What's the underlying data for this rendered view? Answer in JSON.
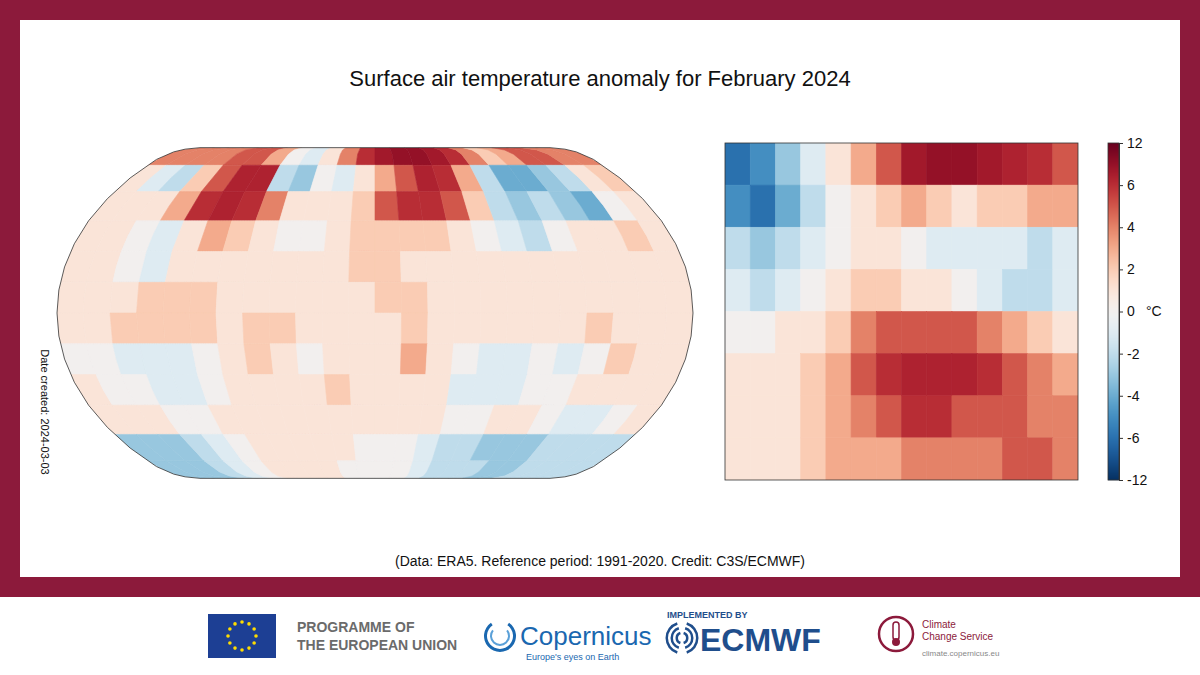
{
  "chart_data": [
    {
      "type": "heatmap",
      "title": "Surface air temperature anomaly for February 2024",
      "lon": [
        -172.5,
        -157.5,
        -142.5,
        -127.5,
        -112.5,
        -97.5,
        -82.5,
        -67.5,
        -52.5,
        -37.5,
        -22.5,
        -7.5,
        7.5,
        22.5,
        37.5,
        52.5,
        67.5,
        82.5,
        97.5,
        112.5,
        127.5,
        142.5,
        157.5,
        172.5
      ],
      "lat": [
        82.5,
        67.5,
        52.5,
        37.5,
        22.5,
        7.5,
        -7.5,
        -22.5,
        -37.5,
        -52.5,
        -67.5,
        -82.5
      ],
      "values": [
        [
          4,
          4,
          4,
          4,
          5,
          5,
          3,
          0,
          -1,
          1,
          4,
          6,
          8,
          9,
          9,
          8,
          6,
          4,
          2,
          3,
          5,
          5,
          4,
          4
        ],
        [
          1,
          -1,
          -2,
          2,
          5,
          7,
          7,
          -2,
          -3,
          0,
          -1,
          1,
          3,
          5,
          7,
          6,
          3,
          -2,
          -4,
          -4,
          -3,
          -2,
          1,
          2
        ],
        [
          1,
          1,
          1,
          3,
          6,
          7,
          6,
          4,
          1,
          1,
          1,
          2,
          5,
          6,
          6,
          5,
          2,
          -2,
          -3,
          -2,
          -3,
          -4,
          0,
          1
        ],
        [
          1,
          1,
          0,
          -1,
          1,
          3,
          2,
          1,
          0,
          0,
          1,
          2,
          2,
          2,
          2,
          1,
          0,
          -1,
          -2,
          0,
          1,
          1,
          2,
          1
        ],
        [
          1,
          1,
          0,
          -1,
          1,
          1,
          1,
          1,
          1,
          1,
          1,
          2,
          2,
          1,
          1,
          1,
          1,
          1,
          1,
          1,
          1,
          1,
          1,
          1
        ],
        [
          1,
          1,
          1,
          2,
          2,
          2,
          1,
          1,
          1,
          1,
          1,
          1,
          2,
          2,
          1,
          1,
          1,
          1,
          1,
          1,
          1,
          1,
          1,
          1
        ],
        [
          1,
          1,
          2,
          2,
          2,
          2,
          1,
          2,
          2,
          1,
          1,
          1,
          1,
          2,
          1,
          1,
          1,
          1,
          1,
          1,
          2,
          1,
          1,
          1
        ],
        [
          0,
          0,
          -1,
          -1,
          -1,
          0,
          1,
          2,
          1,
          0,
          1,
          1,
          1,
          3,
          1,
          0,
          -1,
          -1,
          0,
          -1,
          0,
          2,
          1,
          1
        ],
        [
          1,
          0,
          0,
          -1,
          -1,
          0,
          1,
          1,
          1,
          1,
          2,
          1,
          1,
          1,
          1,
          -1,
          -1,
          -1,
          0,
          0,
          1,
          1,
          1,
          1
        ],
        [
          1,
          1,
          1,
          0,
          0,
          1,
          1,
          1,
          1,
          1,
          1,
          1,
          1,
          1,
          1,
          0,
          0,
          1,
          1,
          0,
          -1,
          -1,
          0,
          1
        ],
        [
          -3,
          -3,
          -3,
          -2,
          -1,
          0,
          1,
          1,
          1,
          1,
          1,
          0,
          0,
          0,
          -1,
          -2,
          -2,
          -3,
          -3,
          -3,
          -2,
          -2,
          -2,
          -2
        ],
        [
          -3,
          -3,
          -3,
          -2,
          -1,
          0,
          1,
          1,
          1,
          1,
          0,
          0,
          0,
          0,
          -1,
          -2,
          -2,
          -2,
          -3,
          -3,
          -2,
          -2,
          -2,
          -2
        ]
      ],
      "colorbar": {
        "range": [
          -12,
          12
        ],
        "ticks": [
          -12,
          -6,
          -4,
          -2,
          0,
          2,
          4,
          6,
          12
        ],
        "label": "°C"
      }
    },
    {
      "type": "heatmap",
      "lon": [
        -22.5,
        -17.5,
        -12.5,
        -7.5,
        -2.5,
        2.5,
        7.5,
        12.5,
        17.5,
        22.5,
        27.5,
        32.5,
        37.5,
        42.5
      ],
      "lat": [
        72.5,
        67.5,
        62.5,
        57.5,
        52.5,
        47.5,
        42.5,
        37.5
      ],
      "values": [
        [
          -6,
          -5,
          -3,
          -1,
          1,
          3,
          5,
          8,
          9,
          9,
          8,
          7,
          6,
          5
        ],
        [
          -5,
          -6,
          -4,
          -2,
          0,
          1,
          2,
          3,
          2,
          1,
          2,
          2,
          3,
          3
        ],
        [
          -2,
          -3,
          -2,
          -1,
          0,
          1,
          1,
          0,
          -1,
          -1,
          -1,
          -1,
          -2,
          -1
        ],
        [
          -1,
          -2,
          -1,
          0,
          1,
          2,
          2,
          1,
          1,
          0,
          -1,
          -2,
          -2,
          -1
        ],
        [
          0,
          0,
          1,
          1,
          2,
          4,
          5,
          5,
          5,
          5,
          4,
          3,
          2,
          1
        ],
        [
          1,
          1,
          1,
          2,
          3,
          5,
          6,
          7,
          7,
          7,
          6,
          5,
          4,
          3
        ],
        [
          1,
          1,
          1,
          2,
          3,
          4,
          5,
          6,
          6,
          5,
          5,
          5,
          4,
          4
        ],
        [
          1,
          1,
          1,
          2,
          3,
          3,
          3,
          4,
          4,
          4,
          4,
          5,
          5,
          4
        ]
      ]
    }
  ],
  "notes": {
    "credit": "(Data: ERA5. Reference period: 1991-2020. Credit: C3S/ECMWF)",
    "date_created": "Date created: 2024-03-03"
  },
  "footer": {
    "eu": [
      "PROGRAMME OF",
      "THE EUROPEAN UNION"
    ],
    "copernicus": "Copernicus",
    "copernicus_tagline": "Europe's eyes on Earth",
    "implemented_by": "IMPLEMENTED BY",
    "ecmwf": "ECMWF",
    "c3s": [
      "Climate",
      "Change Service"
    ],
    "c3s_url": "climate.copernicus.eu"
  }
}
